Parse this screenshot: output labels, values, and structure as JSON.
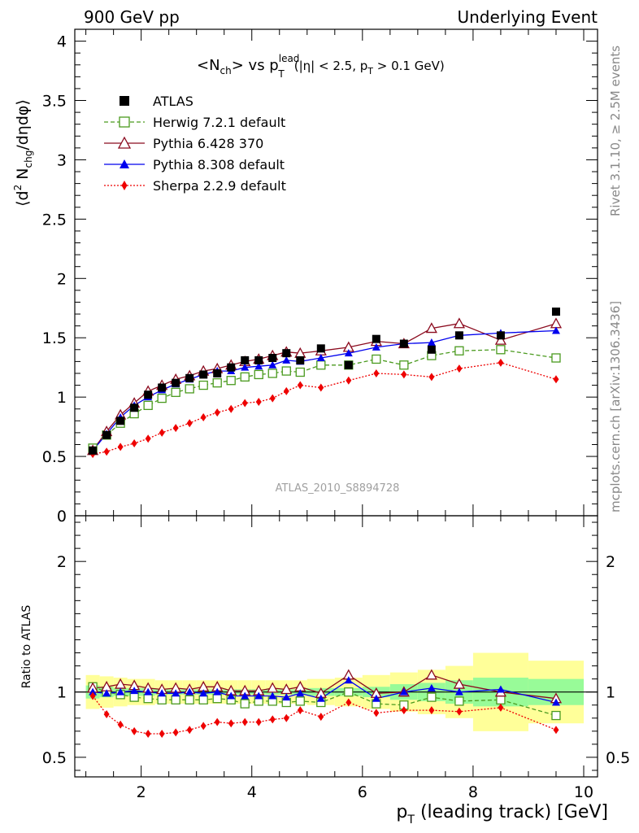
{
  "header": {
    "left": "900 GeV pp",
    "right": "Underlying Event"
  },
  "side_labels": {
    "rivet": "Rivet 3.1.10, ≥ 2.5M events",
    "mcplots": "mcplots.cern.ch [arXiv:1306.3436]"
  },
  "chart_data": {
    "type": "line",
    "title_parts": {
      "a": "<N",
      "b": "ch",
      "c": "> vs p",
      "d": "lead",
      "e": "T",
      "f": "(|η| < 2.5, p",
      "g": "T",
      "h": " > 0.1 GeV)"
    },
    "watermark": "ATLAS_2010_S8894728",
    "xlabel": "p",
    "xlabel_sub": "T",
    "xlabel_rest": " (leading track) [GeV]",
    "ylabel_parts": {
      "a": "⟨d",
      "b": "2",
      "c": " N",
      "d": "chg",
      "e": "/dηdφ⟩"
    },
    "ratio_ylabel": "Ratio to ATLAS",
    "xlim": [
      0.8,
      10.25
    ],
    "ylim": [
      0,
      4.1
    ],
    "ratio_ylim": [
      0.35,
      2.35
    ],
    "x_ticks": [
      2,
      4,
      6,
      8,
      10
    ],
    "x_tick_labels": [
      "2",
      "4",
      "6",
      "8",
      "10"
    ],
    "y_ticks": [
      0,
      0.5,
      1,
      1.5,
      2,
      2.5,
      3,
      3.5,
      4
    ],
    "y_tick_labels": [
      "0",
      "0.5",
      "1",
      "1.5",
      "2",
      "2.5",
      "3",
      "3.5",
      "4"
    ],
    "ratio_ticks": [
      0.5,
      1,
      2
    ],
    "ratio_tick_labels": [
      "0.5",
      "1",
      "2"
    ],
    "x": [
      1.125,
      1.375,
      1.625,
      1.875,
      2.125,
      2.375,
      2.625,
      2.875,
      3.125,
      3.375,
      3.625,
      3.875,
      4.125,
      4.375,
      4.625,
      4.875,
      5.25,
      5.75,
      6.25,
      6.75,
      7.25,
      7.75,
      8.5,
      9.5
    ],
    "x_edges": [
      1.0,
      1.25,
      1.5,
      1.75,
      2.0,
      2.25,
      2.5,
      2.75,
      3.0,
      3.25,
      3.5,
      3.75,
      4.0,
      4.25,
      4.5,
      4.75,
      5.0,
      5.5,
      6.0,
      6.5,
      7.0,
      7.5,
      8.0,
      9.0,
      10.0
    ],
    "band_yellow": [
      0.13,
      0.12,
      0.11,
      0.1,
      0.1,
      0.09,
      0.09,
      0.09,
      0.09,
      0.09,
      0.09,
      0.09,
      0.09,
      0.09,
      0.09,
      0.09,
      0.1,
      0.11,
      0.13,
      0.15,
      0.17,
      0.2,
      0.3,
      0.24
    ],
    "band_green": [
      0.05,
      0.04,
      0.03,
      0.03,
      0.03,
      0.02,
      0.02,
      0.02,
      0.02,
      0.02,
      0.02,
      0.02,
      0.02,
      0.02,
      0.02,
      0.02,
      0.03,
      0.03,
      0.04,
      0.06,
      0.07,
      0.09,
      0.11,
      0.1
    ],
    "series": [
      {
        "name": "ATLAS",
        "key": "atlas",
        "color": "#000000",
        "values": [
          0.55,
          0.68,
          0.8,
          0.91,
          1.02,
          1.08,
          1.12,
          1.16,
          1.19,
          1.2,
          1.25,
          1.31,
          1.31,
          1.33,
          1.37,
          1.31,
          1.41,
          1.27,
          1.49,
          1.45,
          1.4,
          1.52,
          1.52,
          1.72
        ]
      },
      {
        "name": "Herwig 7.2.1 default",
        "key": "herwig",
        "color": "#4a9a1e",
        "values": [
          0.57,
          0.68,
          0.78,
          0.86,
          0.93,
          0.99,
          1.04,
          1.07,
          1.1,
          1.12,
          1.14,
          1.17,
          1.19,
          1.2,
          1.22,
          1.21,
          1.27,
          1.27,
          1.32,
          1.27,
          1.35,
          1.39,
          1.4,
          1.33
        ]
      },
      {
        "name": "Pythia 6.428 370",
        "key": "py6",
        "color": "#8b0a1e",
        "values": [
          0.55,
          0.71,
          0.85,
          0.95,
          1.05,
          1.1,
          1.15,
          1.18,
          1.22,
          1.24,
          1.27,
          1.3,
          1.32,
          1.35,
          1.38,
          1.37,
          1.39,
          1.42,
          1.47,
          1.45,
          1.58,
          1.62,
          1.48,
          1.62
        ]
      },
      {
        "name": "Pythia 8.308 default",
        "key": "py8",
        "color": "#0000ee",
        "values": [
          0.55,
          0.69,
          0.83,
          0.93,
          1.0,
          1.06,
          1.11,
          1.15,
          1.19,
          1.22,
          1.22,
          1.25,
          1.26,
          1.27,
          1.31,
          1.3,
          1.33,
          1.37,
          1.42,
          1.45,
          1.46,
          1.52,
          1.54,
          1.56
        ]
      },
      {
        "name": "Sherpa 2.2.9 default",
        "key": "sherpa",
        "color": "#ee0000",
        "values": [
          0.52,
          0.54,
          0.58,
          0.61,
          0.65,
          0.7,
          0.74,
          0.78,
          0.83,
          0.87,
          0.9,
          0.95,
          0.96,
          0.99,
          1.05,
          1.1,
          1.08,
          1.14,
          1.2,
          1.19,
          1.17,
          1.24,
          1.29,
          1.15
        ]
      }
    ],
    "ratios": {
      "herwig": [
        1.04,
        1.0,
        0.98,
        0.96,
        0.95,
        0.94,
        0.94,
        0.94,
        0.94,
        0.95,
        0.94,
        0.91,
        0.93,
        0.93,
        0.92,
        0.93,
        0.92,
        1.0,
        0.91,
        0.9,
        0.96,
        0.93,
        0.94,
        0.82
      ],
      "py6": [
        1.03,
        1.04,
        1.06,
        1.05,
        1.03,
        1.02,
        1.03,
        1.02,
        1.04,
        1.04,
        1.01,
        1.01,
        1.01,
        1.03,
        1.02,
        1.04,
        0.99,
        1.13,
        0.99,
        1.0,
        1.13,
        1.06,
        1.0,
        0.95
      ],
      "py8": [
        1.0,
        0.99,
        1.0,
        1.01,
        1.0,
        0.99,
        0.99,
        1.0,
        0.99,
        1.0,
        0.97,
        0.97,
        0.97,
        0.97,
        0.96,
        0.99,
        0.95,
        1.09,
        0.95,
        1.0,
        1.03,
        1.0,
        1.02,
        0.92
      ],
      "sherpa": [
        0.97,
        0.83,
        0.75,
        0.7,
        0.68,
        0.68,
        0.69,
        0.71,
        0.74,
        0.77,
        0.76,
        0.77,
        0.77,
        0.79,
        0.8,
        0.86,
        0.81,
        0.92,
        0.84,
        0.86,
        0.86,
        0.85,
        0.88,
        0.71
      ]
    }
  }
}
